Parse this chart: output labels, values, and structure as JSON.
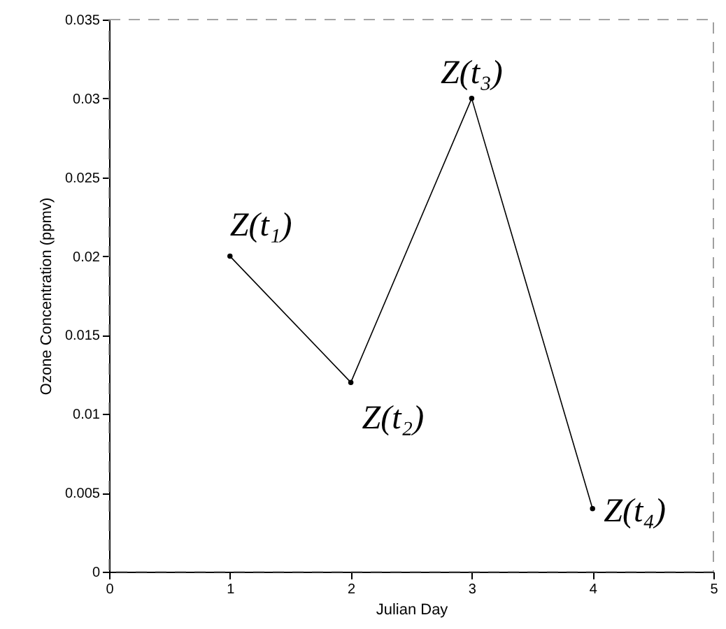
{
  "chart_data": {
    "type": "line",
    "xlabel": "Julian Day",
    "ylabel": "Ozone Concentration (ppmv)",
    "x": [
      1,
      2,
      3,
      4
    ],
    "series": [
      {
        "color": "#000000",
        "values": [
          0.02,
          0.012,
          0.03,
          0.004
        ]
      }
    ],
    "xlim": [
      0,
      5
    ],
    "xticks": [
      0,
      1,
      2,
      3,
      4,
      5
    ],
    "ylim": [
      0,
      0.035
    ],
    "yticks": [
      0,
      0.005,
      0.01,
      0.015,
      0.02,
      0.025,
      0.03,
      0.035
    ],
    "marker": "circle",
    "line_style": "solid",
    "grid": false,
    "annotations": [
      {
        "text": "Z(t₁)",
        "x": 1,
        "y": 0.02
      },
      {
        "text": "Z(t₂)",
        "x": 2,
        "y": 0.012
      },
      {
        "text": "Z(t₃)",
        "x": 3,
        "y": 0.03
      },
      {
        "text": "Z(t₄)",
        "x": 4,
        "y": 0.004
      }
    ]
  }
}
